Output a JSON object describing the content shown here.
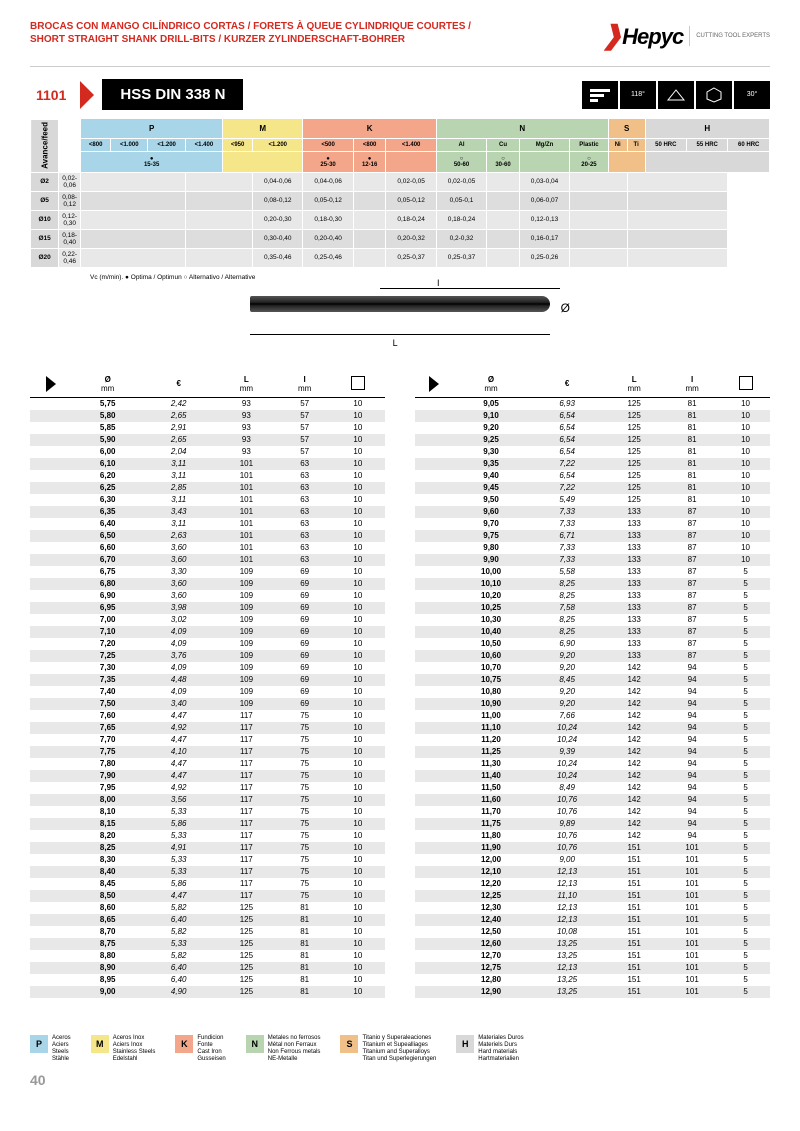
{
  "header": {
    "title_line1": "BROCAS CON MANGO CILÍNDRICO CORTAS / FORETS À QUEUE CYLINDRIQUE COURTES /",
    "title_line2": "SHORT STRAIGHT SHANK DRILL-BITS / KURZER ZYLINDERSCHAFT-BOHRER",
    "brand": "Hepyc",
    "brand_sub": "CUTTING TOOL EXPERTS"
  },
  "product": {
    "code": "1101",
    "name": "HSS DIN 338 N",
    "angle1": "118°",
    "angle2": "30°"
  },
  "materials": {
    "groups": [
      "P",
      "M",
      "K",
      "N",
      "S",
      "H"
    ],
    "colors": {
      "P": "#a8d5e8",
      "M": "#f5e68a",
      "K": "#f4a68a",
      "N": "#b8d4b0",
      "S": "#f0c088",
      "H": "#d8d8d8"
    },
    "p_ranges": [
      "<800",
      "<1.000",
      "<1.200",
      "<1.400"
    ],
    "m_ranges": [
      "<950",
      "<1.200"
    ],
    "k_ranges": [
      "<500",
      "<800",
      "<1.400"
    ],
    "n_types": [
      "Al",
      "Cu",
      "Mg/Zn",
      "Plastic"
    ],
    "s_types": [
      "Ni",
      "Ti"
    ],
    "h_types": [
      "50 HRC",
      "55 HRC",
      "60 HRC"
    ],
    "vc_p": "15-35",
    "vc_k1": "25-30",
    "vc_k2": "12-16",
    "vc_n1": "50-60",
    "vc_n2": "30-60",
    "vc_n4": "20-25",
    "feed_rows": [
      {
        "d": "Ø2",
        "p": "0,02-0,06",
        "k1": "0,04-0,06",
        "k2": "0,04-0,06",
        "n1": "0,02-0,05",
        "n2": "0,02-0,05",
        "n4": "0,03-0,04"
      },
      {
        "d": "Ø5",
        "p": "0,08-0,12",
        "k1": "0,08-0,12",
        "k2": "0,05-0,12",
        "n1": "0,05-0,12",
        "n2": "0,05-0,1",
        "n4": "0,06-0,07"
      },
      {
        "d": "Ø10",
        "p": "0,12-0,30",
        "k1": "0,20-0,30",
        "k2": "0,18-0,30",
        "n1": "0,18-0,24",
        "n2": "0,18-0,24",
        "n4": "0,12-0,13"
      },
      {
        "d": "Ø15",
        "p": "0,18-0,40",
        "k1": "0,30-0,40",
        "k2": "0,20-0,40",
        "n1": "0,20-0,32",
        "n2": "0,2-0,32",
        "n4": "0,16-0,17"
      },
      {
        "d": "Ø20",
        "p": "0,22-0,46",
        "k1": "0,35-0,46",
        "k2": "0,25-0,46",
        "n1": "0,25-0,37",
        "n2": "0,25-0,37",
        "n4": "0,25-0,26"
      }
    ],
    "vc_note": "Vc (m/min). ● Optima / Optimun ○ Alternativo / Alternative"
  },
  "diagram": {
    "L": "L",
    "I": "I",
    "dia": "Ø"
  },
  "table_headers": {
    "dia": "Ø",
    "dia_unit": "mm",
    "eur": "€",
    "L": "L",
    "L_unit": "mm",
    "I": "I",
    "I_unit": "mm",
    "pack": "📦"
  },
  "table_left": [
    [
      "5,75",
      "2,42",
      "93",
      "57",
      "10"
    ],
    [
      "5,80",
      "2,65",
      "93",
      "57",
      "10"
    ],
    [
      "5,85",
      "2,91",
      "93",
      "57",
      "10"
    ],
    [
      "5,90",
      "2,65",
      "93",
      "57",
      "10"
    ],
    [
      "6,00",
      "2,04",
      "93",
      "57",
      "10"
    ],
    [
      "6,10",
      "3,11",
      "101",
      "63",
      "10"
    ],
    [
      "6,20",
      "3,11",
      "101",
      "63",
      "10"
    ],
    [
      "6,25",
      "2,85",
      "101",
      "63",
      "10"
    ],
    [
      "6,30",
      "3,11",
      "101",
      "63",
      "10"
    ],
    [
      "6,35",
      "3,43",
      "101",
      "63",
      "10"
    ],
    [
      "6,40",
      "3,11",
      "101",
      "63",
      "10"
    ],
    [
      "6,50",
      "2,63",
      "101",
      "63",
      "10"
    ],
    [
      "6,60",
      "3,60",
      "101",
      "63",
      "10"
    ],
    [
      "6,70",
      "3,60",
      "101",
      "63",
      "10"
    ],
    [
      "6,75",
      "3,30",
      "109",
      "69",
      "10"
    ],
    [
      "6,80",
      "3,60",
      "109",
      "69",
      "10"
    ],
    [
      "6,90",
      "3,60",
      "109",
      "69",
      "10"
    ],
    [
      "6,95",
      "3,98",
      "109",
      "69",
      "10"
    ],
    [
      "7,00",
      "3,02",
      "109",
      "69",
      "10"
    ],
    [
      "7,10",
      "4,09",
      "109",
      "69",
      "10"
    ],
    [
      "7,20",
      "4,09",
      "109",
      "69",
      "10"
    ],
    [
      "7,25",
      "3,76",
      "109",
      "69",
      "10"
    ],
    [
      "7,30",
      "4,09",
      "109",
      "69",
      "10"
    ],
    [
      "7,35",
      "4,48",
      "109",
      "69",
      "10"
    ],
    [
      "7,40",
      "4,09",
      "109",
      "69",
      "10"
    ],
    [
      "7,50",
      "3,40",
      "109",
      "69",
      "10"
    ],
    [
      "7,60",
      "4,47",
      "117",
      "75",
      "10"
    ],
    [
      "7,65",
      "4,92",
      "117",
      "75",
      "10"
    ],
    [
      "7,70",
      "4,47",
      "117",
      "75",
      "10"
    ],
    [
      "7,75",
      "4,10",
      "117",
      "75",
      "10"
    ],
    [
      "7,80",
      "4,47",
      "117",
      "75",
      "10"
    ],
    [
      "7,90",
      "4,47",
      "117",
      "75",
      "10"
    ],
    [
      "7,95",
      "4,92",
      "117",
      "75",
      "10"
    ],
    [
      "8,00",
      "3,56",
      "117",
      "75",
      "10"
    ],
    [
      "8,10",
      "5,33",
      "117",
      "75",
      "10"
    ],
    [
      "8,15",
      "5,86",
      "117",
      "75",
      "10"
    ],
    [
      "8,20",
      "5,33",
      "117",
      "75",
      "10"
    ],
    [
      "8,25",
      "4,91",
      "117",
      "75",
      "10"
    ],
    [
      "8,30",
      "5,33",
      "117",
      "75",
      "10"
    ],
    [
      "8,40",
      "5,33",
      "117",
      "75",
      "10"
    ],
    [
      "8,45",
      "5,86",
      "117",
      "75",
      "10"
    ],
    [
      "8,50",
      "4,47",
      "117",
      "75",
      "10"
    ],
    [
      "8,60",
      "5,82",
      "125",
      "81",
      "10"
    ],
    [
      "8,65",
      "6,40",
      "125",
      "81",
      "10"
    ],
    [
      "8,70",
      "5,82",
      "125",
      "81",
      "10"
    ],
    [
      "8,75",
      "5,33",
      "125",
      "81",
      "10"
    ],
    [
      "8,80",
      "5,82",
      "125",
      "81",
      "10"
    ],
    [
      "8,90",
      "6,40",
      "125",
      "81",
      "10"
    ],
    [
      "8,95",
      "6,40",
      "125",
      "81",
      "10"
    ],
    [
      "9,00",
      "4,90",
      "125",
      "81",
      "10"
    ]
  ],
  "table_right": [
    [
      "9,05",
      "6,93",
      "125",
      "81",
      "10"
    ],
    [
      "9,10",
      "6,54",
      "125",
      "81",
      "10"
    ],
    [
      "9,20",
      "6,54",
      "125",
      "81",
      "10"
    ],
    [
      "9,25",
      "6,54",
      "125",
      "81",
      "10"
    ],
    [
      "9,30",
      "6,54",
      "125",
      "81",
      "10"
    ],
    [
      "9,35",
      "7,22",
      "125",
      "81",
      "10"
    ],
    [
      "9,40",
      "6,54",
      "125",
      "81",
      "10"
    ],
    [
      "9,45",
      "7,22",
      "125",
      "81",
      "10"
    ],
    [
      "9,50",
      "5,49",
      "125",
      "81",
      "10"
    ],
    [
      "9,60",
      "7,33",
      "133",
      "87",
      "10"
    ],
    [
      "9,70",
      "7,33",
      "133",
      "87",
      "10"
    ],
    [
      "9,75",
      "6,71",
      "133",
      "87",
      "10"
    ],
    [
      "9,80",
      "7,33",
      "133",
      "87",
      "10"
    ],
    [
      "9,90",
      "7,33",
      "133",
      "87",
      "10"
    ],
    [
      "10,00",
      "5,58",
      "133",
      "87",
      "5"
    ],
    [
      "10,10",
      "8,25",
      "133",
      "87",
      "5"
    ],
    [
      "10,20",
      "8,25",
      "133",
      "87",
      "5"
    ],
    [
      "10,25",
      "7,58",
      "133",
      "87",
      "5"
    ],
    [
      "10,30",
      "8,25",
      "133",
      "87",
      "5"
    ],
    [
      "10,40",
      "8,25",
      "133",
      "87",
      "5"
    ],
    [
      "10,50",
      "6,90",
      "133",
      "87",
      "5"
    ],
    [
      "10,60",
      "9,20",
      "133",
      "87",
      "5"
    ],
    [
      "10,70",
      "9,20",
      "142",
      "94",
      "5"
    ],
    [
      "10,75",
      "8,45",
      "142",
      "94",
      "5"
    ],
    [
      "10,80",
      "9,20",
      "142",
      "94",
      "5"
    ],
    [
      "10,90",
      "9,20",
      "142",
      "94",
      "5"
    ],
    [
      "11,00",
      "7,66",
      "142",
      "94",
      "5"
    ],
    [
      "11,10",
      "10,24",
      "142",
      "94",
      "5"
    ],
    [
      "11,20",
      "10,24",
      "142",
      "94",
      "5"
    ],
    [
      "11,25",
      "9,39",
      "142",
      "94",
      "5"
    ],
    [
      "11,30",
      "10,24",
      "142",
      "94",
      "5"
    ],
    [
      "11,40",
      "10,24",
      "142",
      "94",
      "5"
    ],
    [
      "11,50",
      "8,49",
      "142",
      "94",
      "5"
    ],
    [
      "11,60",
      "10,76",
      "142",
      "94",
      "5"
    ],
    [
      "11,70",
      "10,76",
      "142",
      "94",
      "5"
    ],
    [
      "11,75",
      "9,89",
      "142",
      "94",
      "5"
    ],
    [
      "11,80",
      "10,76",
      "142",
      "94",
      "5"
    ],
    [
      "11,90",
      "10,76",
      "151",
      "101",
      "5"
    ],
    [
      "12,00",
      "9,00",
      "151",
      "101",
      "5"
    ],
    [
      "12,10",
      "12,13",
      "151",
      "101",
      "5"
    ],
    [
      "12,20",
      "12,13",
      "151",
      "101",
      "5"
    ],
    [
      "12,25",
      "11,10",
      "151",
      "101",
      "5"
    ],
    [
      "12,30",
      "12,13",
      "151",
      "101",
      "5"
    ],
    [
      "12,40",
      "12,13",
      "151",
      "101",
      "5"
    ],
    [
      "12,50",
      "10,08",
      "151",
      "101",
      "5"
    ],
    [
      "12,60",
      "13,25",
      "151",
      "101",
      "5"
    ],
    [
      "12,70",
      "13,25",
      "151",
      "101",
      "5"
    ],
    [
      "12,75",
      "12,13",
      "151",
      "101",
      "5"
    ],
    [
      "12,80",
      "13,25",
      "151",
      "101",
      "5"
    ],
    [
      "12,90",
      "13,25",
      "151",
      "101",
      "5"
    ]
  ],
  "legend": [
    {
      "code": "P",
      "color": "#a8d5e8",
      "text": "Aceros\nAciers\nSteels\nStähle"
    },
    {
      "code": "M",
      "color": "#f5e68a",
      "text": "Aceros Inox\nAciers Inox\nStainless Steels\nEdelstahl"
    },
    {
      "code": "K",
      "color": "#f4a68a",
      "text": "Fundicion\nFonte\nCast Iron\nGusseisen"
    },
    {
      "code": "N",
      "color": "#b8d4b0",
      "text": "Metales no ferrosos\nMétal non Ferraux\nNon Ferrous metals\nNE-Metalle"
    },
    {
      "code": "S",
      "color": "#f0c088",
      "text": "Titanio y Superaleaciones\nTitanium et Supealliages\nTitanium and Superalloys\nTitan und Superlegierungen"
    },
    {
      "code": "H",
      "color": "#d8d8d8",
      "text": "Materiales Duros\nMateriels Durs\nHard materials\nHartmaterialien"
    }
  ],
  "page_number": "40"
}
